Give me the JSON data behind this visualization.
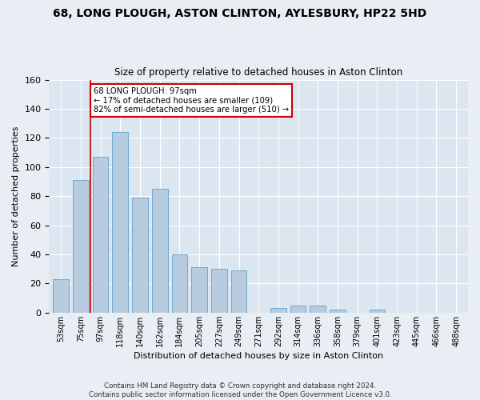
{
  "title1": "68, LONG PLOUGH, ASTON CLINTON, AYLESBURY, HP22 5HD",
  "title2": "Size of property relative to detached houses in Aston Clinton",
  "xlabel": "Distribution of detached houses by size in Aston Clinton",
  "ylabel": "Number of detached properties",
  "categories": [
    "53sqm",
    "75sqm",
    "97sqm",
    "118sqm",
    "140sqm",
    "162sqm",
    "184sqm",
    "205sqm",
    "227sqm",
    "249sqm",
    "271sqm",
    "292sqm",
    "314sqm",
    "336sqm",
    "358sqm",
    "379sqm",
    "401sqm",
    "423sqm",
    "445sqm",
    "466sqm",
    "488sqm"
  ],
  "values": [
    23,
    91,
    107,
    124,
    79,
    85,
    40,
    31,
    30,
    29,
    0,
    3,
    5,
    5,
    2,
    0,
    2,
    0,
    0,
    0,
    0
  ],
  "bar_color": "#b8ccdf",
  "bar_edge_color": "#6fa8d0",
  "background_color": "#dce6f0",
  "grid_color": "#ffffff",
  "fig_background": "#e8eef4",
  "annotation_box_text": "68 LONG PLOUGH: 97sqm\n← 17% of detached houses are smaller (109)\n82% of semi-detached houses are larger (510) →",
  "annotation_box_color": "#ffffff",
  "annotation_box_edge_color": "#cc0000",
  "vline_color": "#cc0000",
  "vline_x": 1.5,
  "ylim": [
    0,
    160
  ],
  "yticks": [
    0,
    20,
    40,
    60,
    80,
    100,
    120,
    140,
    160
  ],
  "footer": "Contains HM Land Registry data © Crown copyright and database right 2024.\nContains public sector information licensed under the Open Government Licence v3.0."
}
